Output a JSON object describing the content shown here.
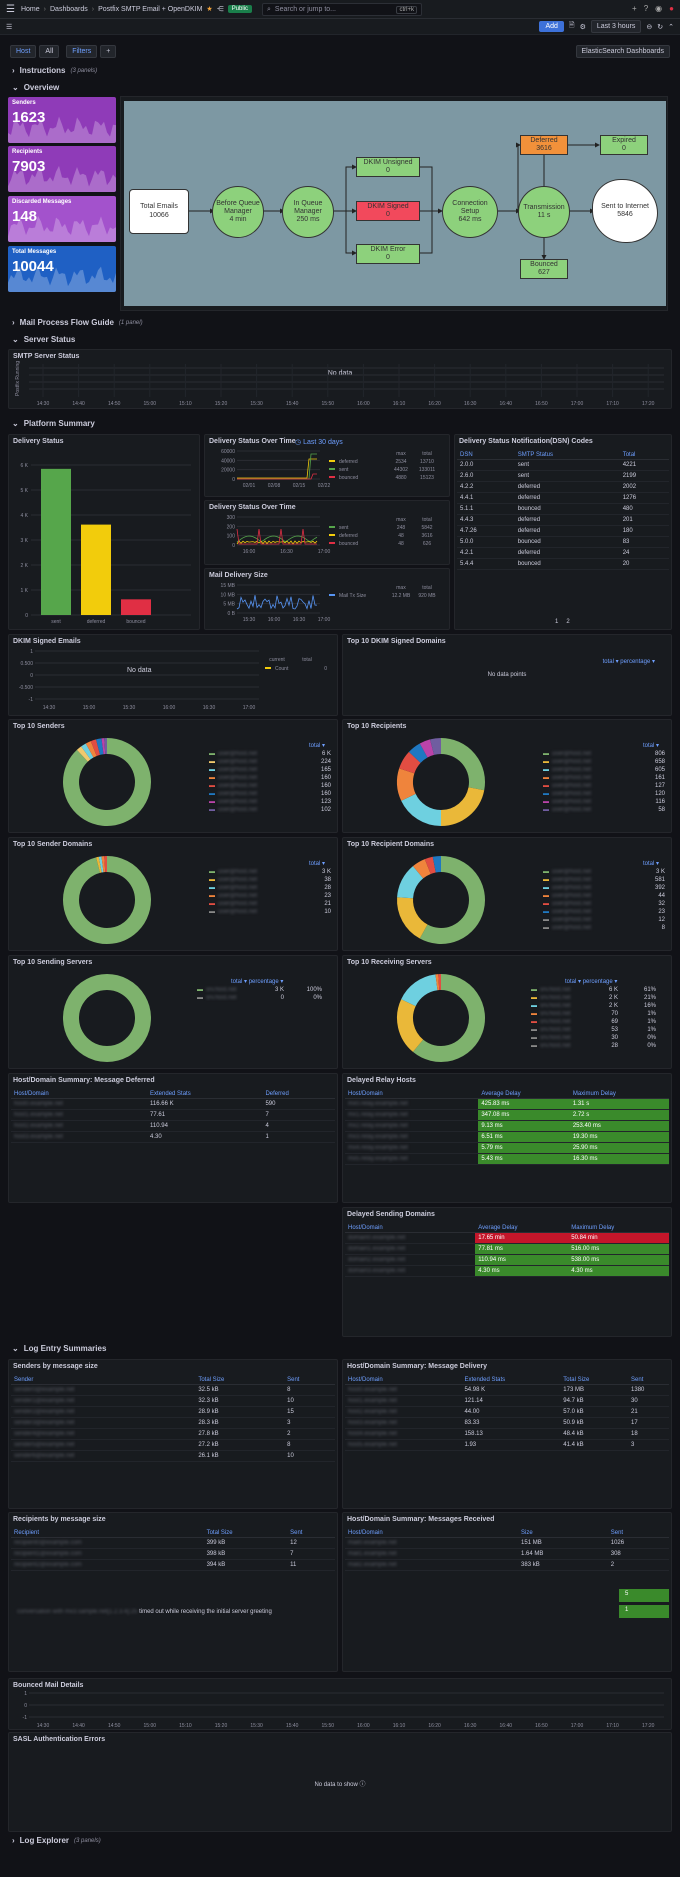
{
  "topbar": {
    "home": "Home",
    "dashboards": "Dashboards",
    "title": "Postfix SMTP Email + OpenDKIM",
    "public": "Public",
    "search": "Search or jump to...",
    "kbd": "ctrl+k",
    "add": "Add",
    "time": "Last 3 hours"
  },
  "vars": {
    "host": "Host",
    "host_val": "All",
    "filters": "Filters",
    "link": "ElasticSearch Dashboards"
  },
  "rows": {
    "instructions": "Instructions",
    "instructions_cnt": "(3 panels)",
    "overview": "Overview",
    "flow": "Mail Process Flow Guide",
    "flow_cnt": "(1 panel)",
    "server": "Server Status",
    "platform": "Platform Summary",
    "log": "Log Entry Summaries",
    "explorer": "Log Explorer",
    "explorer_cnt": "(3 panels)"
  },
  "stats": [
    {
      "label": "Senders",
      "value": "1623",
      "color": "#8f3bb8"
    },
    {
      "label": "Recipients",
      "value": "7903",
      "color": "#8f3bb8"
    },
    {
      "label": "Discarded Messages",
      "value": "148",
      "color": "#a352cc"
    },
    {
      "label": "Total Messages",
      "value": "10044",
      "color": "#1f60c4"
    }
  ],
  "flow": {
    "total": "Total Emails",
    "total_v": "10066",
    "before": "Before Queue Manager",
    "before_v": "4 min",
    "inq": "In Queue Manager",
    "inq_v": "250 ms",
    "dkim_u": "DKIM Unsigned",
    "dkim_u_v": "0",
    "dkim_s": "DKIM Signed",
    "dkim_s_v": "0",
    "dkim_e": "DKIM Error",
    "dkim_e_v": "0",
    "conn": "Connection Setup",
    "conn_v": "642 ms",
    "trans": "Transmission",
    "trans_v": "11 s",
    "deferred": "Deferred",
    "deferred_v": "3616",
    "expired": "Expired",
    "expired_v": "0",
    "bounced": "Bounced",
    "bounced_v": "627",
    "sent": "Sent to Internet",
    "sent_v": "5846"
  },
  "smtp": {
    "title": "SMTP Server Status",
    "nodata": "No data",
    "ylabel": "Postfix Running",
    "times": [
      "14:30",
      "14:40",
      "14:50",
      "15:00",
      "15:10",
      "15:20",
      "15:30",
      "15:40",
      "15:50",
      "16:00",
      "16:10",
      "16:20",
      "16:30",
      "16:40",
      "16:50",
      "17:00",
      "17:10",
      "17:20"
    ]
  },
  "delivery": {
    "title": "Delivery Status",
    "yt": [
      "6 K",
      "5 K",
      "4 K",
      "3 K",
      "2 K",
      "1 K",
      "0"
    ]
  },
  "chart_data": [
    {
      "type": "bar",
      "title": "Delivery Status",
      "categories": [
        "sent",
        "deferred",
        "bounced"
      ],
      "values": [
        5846,
        3616,
        627
      ],
      "colors": [
        "#56a64b",
        "#f2cc0c",
        "#e02f44"
      ],
      "ylim": [
        0,
        6000
      ]
    }
  ],
  "dso": {
    "title": "Delivery Status Over Time",
    "link": "Last 30 days",
    "yt": [
      "60000",
      "40000",
      "20000",
      "0"
    ],
    "xt": [
      "02/01",
      "02/08",
      "02/15",
      "02/22"
    ],
    "hdr": [
      "max",
      "total"
    ],
    "rows": [
      [
        "deferred",
        "2534",
        "13710"
      ],
      [
        "sent",
        "44302",
        "133011"
      ],
      [
        "bounced",
        "4880",
        "15123"
      ]
    ]
  },
  "dso2": {
    "title": "Delivery Status Over Time",
    "yt": [
      "300",
      "200",
      "100",
      "0"
    ],
    "xt": [
      "16:00",
      "16:30",
      "17:00"
    ],
    "hdr": [
      "max",
      "total"
    ],
    "rows": [
      [
        "sent",
        "248",
        "5842"
      ],
      [
        "deferred",
        "48",
        "3616"
      ],
      [
        "bounced",
        "48",
        "626"
      ]
    ]
  },
  "mds": {
    "title": "Mail Delivery Size",
    "yt": [
      "15 MB",
      "10 MB",
      "5 MB",
      "0 B"
    ],
    "xt": [
      "15:30",
      "16:00",
      "16:30",
      "17:00"
    ],
    "hdr": [
      "max",
      "total"
    ],
    "row": [
      "Mail Tx Size",
      "12.2 MB",
      "920 MB"
    ]
  },
  "dsn": {
    "title": "Delivery Status Notification(DSN) Codes",
    "hdr": [
      "DSN",
      "SMTP Status",
      "Total"
    ],
    "rows": [
      [
        "2.0.0",
        "sent",
        "4221"
      ],
      [
        "2.6.0",
        "sent",
        "2199"
      ],
      [
        "4.2.2",
        "deferred",
        "2002"
      ],
      [
        "4.4.1",
        "deferred",
        "1276"
      ],
      [
        "5.1.1",
        "bounced",
        "480"
      ],
      [
        "4.4.3",
        "deferred",
        "201"
      ],
      [
        "4.7.26",
        "deferred",
        "180"
      ],
      [
        "5.0.0",
        "bounced",
        "83"
      ],
      [
        "4.2.1",
        "deferred",
        "24"
      ],
      [
        "5.4.4",
        "bounced",
        "20"
      ]
    ],
    "pages": [
      "1",
      "2"
    ]
  },
  "dkim": {
    "title": "DKIM Signed Emails",
    "nodata": "No data",
    "yt": [
      "1",
      "0.500",
      "0",
      "-0.500",
      "-1"
    ],
    "xt": [
      "14:30",
      "15:00",
      "15:30",
      "16:00",
      "16:30",
      "17:00"
    ],
    "hdr": [
      "current",
      "total"
    ],
    "row": [
      "Count",
      "0"
    ]
  },
  "top_dkim": {
    "title": "Top 10 DKIM Signed Domains",
    "hdr": [
      "total",
      "percentage"
    ],
    "nodata": "No data points"
  },
  "senders": {
    "title": "Top 10 Senders",
    "hdr": "total",
    "vals": [
      "6 K",
      "224",
      "165",
      "160",
      "160",
      "160",
      "123",
      "102"
    ]
  },
  "recips": {
    "title": "Top 10 Recipients",
    "hdr": "total",
    "vals": [
      "806",
      "658",
      "605",
      "161",
      "127",
      "120",
      "116",
      "58"
    ]
  },
  "sdom": {
    "title": "Top 10 Sender Domains",
    "hdr": "total",
    "vals": [
      "3 K",
      "38",
      "28",
      "23",
      "21",
      "10"
    ]
  },
  "rdom": {
    "title": "Top 10 Recipient Domains",
    "hdr": "total",
    "vals": [
      "3 K",
      "581",
      "392",
      "44",
      "32",
      "23",
      "12",
      "8"
    ]
  },
  "ssrv": {
    "title": "Top 10 Sending Servers",
    "hdr": [
      "total",
      "percentage"
    ],
    "rows": [
      [
        "3 K",
        "100%"
      ],
      [
        "0",
        "0%"
      ]
    ]
  },
  "rsrv": {
    "title": "Top 10 Receiving Servers",
    "hdr": [
      "total",
      "percentage"
    ],
    "rows": [
      [
        "6 K",
        "61%"
      ],
      [
        "2 K",
        "21%"
      ],
      [
        "2 K",
        "16%"
      ],
      [
        "70",
        "1%"
      ],
      [
        "69",
        "1%"
      ],
      [
        "53",
        "1%"
      ],
      [
        "30",
        "0%"
      ],
      [
        "28",
        "0%"
      ]
    ]
  },
  "hds_def": {
    "title": "Host/Domain Summary: Message Deferred",
    "hdr": [
      "Host/Domain",
      "Extended Stats",
      "Deferred"
    ],
    "rows": [
      [
        "116.66 K",
        "590"
      ],
      [
        "77.61",
        "7"
      ],
      [
        "110.94",
        "4"
      ],
      [
        "4.30",
        "1"
      ]
    ]
  },
  "relay": {
    "title": "Delayed Relay Hosts",
    "hdr": [
      "Host/Domain",
      "Average Delay",
      "Maximum Delay"
    ],
    "rows": [
      [
        "425.83 ms",
        "1.31 s"
      ],
      [
        "347.08 ms",
        "2.72 s"
      ],
      [
        "9.13 ms",
        "253.40 ms"
      ],
      [
        "6.51 ms",
        "19.30 ms"
      ],
      [
        "5.79 ms",
        "25.90 ms"
      ],
      [
        "5.43 ms",
        "16.30 ms"
      ]
    ]
  },
  "sdd": {
    "title": "Delayed Sending Domains",
    "hdr": [
      "Host/Domain",
      "Average Delay",
      "Maximum Delay"
    ],
    "rows": [
      [
        "17.65 min",
        "50.84 min"
      ],
      [
        "77.81 ms",
        "516.00 ms"
      ],
      [
        "110.94 ms",
        "538.00 ms"
      ],
      [
        "4.30 ms",
        "4.30 ms"
      ]
    ]
  },
  "sbs": {
    "title": "Senders by message size",
    "hdr": [
      "Sender",
      "Total Size",
      "Sent"
    ],
    "rows": [
      [
        "32.5 kB",
        "8"
      ],
      [
        "32.3 kB",
        "10"
      ],
      [
        "28.9 kB",
        "15"
      ],
      [
        "28.3 kB",
        "3"
      ],
      [
        "27.8 kB",
        "2"
      ],
      [
        "27.2 kB",
        "8"
      ],
      [
        "26.1 kB",
        "10"
      ]
    ]
  },
  "hds_del": {
    "title": "Host/Domain Summary: Message Delivery",
    "hdr": [
      "Host/Domain",
      "Extended Stats",
      "Total Size",
      "Sent"
    ],
    "rows": [
      [
        "54.98 K",
        "173 MB",
        "1380"
      ],
      [
        "121.14",
        "94.7 kB",
        "30"
      ],
      [
        "44.00",
        "57.0 kB",
        "21"
      ],
      [
        "83.33",
        "50.9 kB",
        "17"
      ],
      [
        "158.13",
        "48.4 kB",
        "18"
      ],
      [
        "1.93",
        "41.4 kB",
        "3"
      ]
    ]
  },
  "rbs": {
    "title": "Recipients by message size",
    "hdr": [
      "Recipient",
      "Total Size",
      "Sent"
    ],
    "rows": [
      [
        "399 kB",
        "12"
      ],
      [
        "398 kB",
        "7"
      ],
      [
        "394 kB",
        "11"
      ]
    ],
    "msg": "timed out while receiving the initial server greeting",
    "badges": [
      "5",
      "1"
    ]
  },
  "hds_rec": {
    "title": "Host/Domain Summary: Messages Received",
    "hdr": [
      "Host/Domain",
      "Size",
      "Sent"
    ],
    "rows": [
      [
        "151 MB",
        "1026"
      ],
      [
        "1.64 MB",
        "308"
      ],
      [
        "383 kB",
        "2"
      ]
    ]
  },
  "bounced_mail": {
    "title": "Bounced Mail Details",
    "yt": [
      "1",
      "0",
      "-1"
    ],
    "xt": [
      "14:30",
      "14:40",
      "14:50",
      "15:00",
      "15:10",
      "15:20",
      "15:30",
      "15:40",
      "15:50",
      "16:00",
      "16:10",
      "16:20",
      "16:30",
      "16:40",
      "16:50",
      "17:00",
      "17:10",
      "17:20"
    ]
  },
  "sasl": {
    "title": "SASL Authentication Errors",
    "nodata": "No data to show"
  }
}
